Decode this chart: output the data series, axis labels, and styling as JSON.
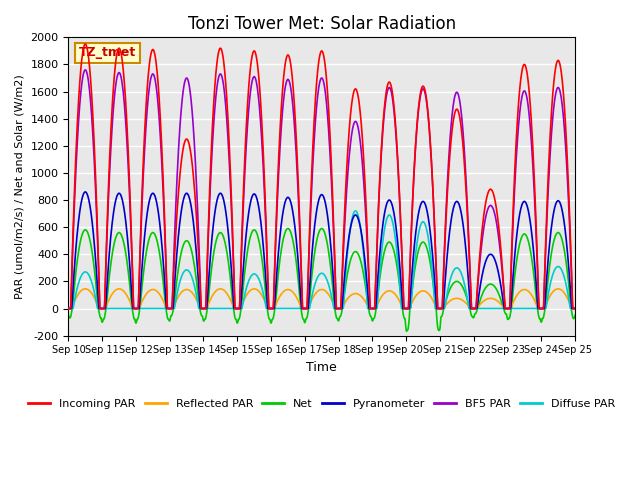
{
  "title": "Tonzi Tower Met: Solar Radiation",
  "ylabel": "PAR (umol/m2/s) / Net and Solar (W/m2)",
  "xlabel": "Time",
  "ylim": [
    -200,
    2000
  ],
  "xtick_labels": [
    "Sep 10",
    "Sep 11",
    "Sep 12",
    "Sep 13",
    "Sep 14",
    "Sep 15",
    "Sep 16",
    "Sep 17",
    "Sep 18",
    "Sep 19",
    "Sep 20",
    "Sep 21",
    "Sep 22",
    "Sep 23",
    "Sep 24",
    "Sep 25"
  ],
  "legend_labels": [
    "Incoming PAR",
    "Reflected PAR",
    "Net",
    "Pyranometer",
    "BF5 PAR",
    "Diffuse PAR"
  ],
  "legend_colors": [
    "#ff0000",
    "#ffa500",
    "#00cc00",
    "#0000cc",
    "#9900cc",
    "#00cccc"
  ],
  "label_box": "TZ_tmet",
  "label_box_bg": "#ffffcc",
  "label_box_edge": "#cc8800",
  "background_color": "#e8e8e8",
  "grid_color": "#ffffff",
  "series_colors": {
    "incoming": "#ff0000",
    "reflected": "#ffa500",
    "net": "#00cc00",
    "pyranometer": "#0000cc",
    "bf5": "#9900cc",
    "diffuse": "#00cccc"
  },
  "n_days": 15,
  "day_peak_incoming": [
    1950,
    1920,
    1910,
    1250,
    1920,
    1900,
    1870,
    1900,
    1620,
    1670,
    1640,
    1470,
    880,
    1800,
    1830
  ],
  "day_peak_reflected": [
    145,
    145,
    140,
    140,
    145,
    145,
    140,
    140,
    110,
    130,
    130,
    75,
    75,
    140,
    145
  ],
  "day_peak_net": [
    580,
    560,
    560,
    500,
    560,
    580,
    590,
    590,
    420,
    490,
    490,
    200,
    180,
    550,
    560
  ],
  "day_peak_pyranometer": [
    860,
    850,
    850,
    850,
    850,
    845,
    820,
    840,
    690,
    800,
    790,
    790,
    400,
    790,
    795
  ],
  "day_peak_bf5": [
    1760,
    1740,
    1730,
    1700,
    1730,
    1710,
    1690,
    1700,
    1380,
    1630,
    1620,
    1595,
    760,
    1605,
    1630
  ],
  "day_peak_diffuse": [
    270,
    0,
    0,
    285,
    0,
    255,
    0,
    260,
    720,
    690,
    640,
    300,
    0,
    0,
    310
  ],
  "day_net_trough": [
    -70,
    -80,
    -80,
    -55,
    -80,
    -80,
    -80,
    -75,
    -60,
    -75,
    -160,
    -60,
    -40,
    -75,
    -75
  ],
  "points_per_day": 96,
  "yticks": [
    -200,
    0,
    200,
    400,
    600,
    800,
    1000,
    1200,
    1400,
    1600,
    1800,
    2000
  ]
}
